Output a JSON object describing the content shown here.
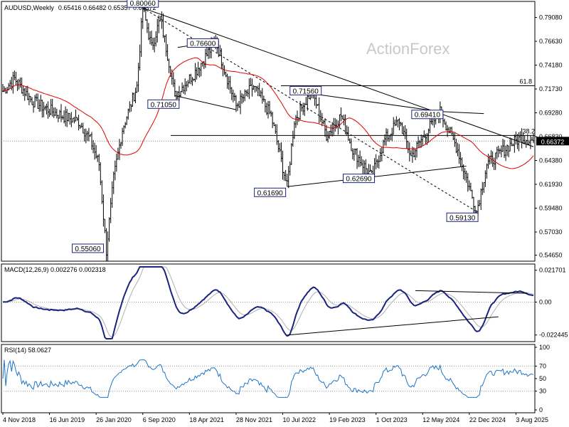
{
  "header": {
    "symbol_line": "AUDUSD,Weekly",
    "ohlc": "0.65416 0.66482 0.65357 0.66372"
  },
  "watermark": "ActionForex",
  "colors": {
    "price": "#000000",
    "sma": "#e00000",
    "macd": "#1a237e",
    "signal": "#b0b0b0",
    "rsi": "#1e73c8",
    "current_box": "#000000"
  },
  "price_axis": {
    "labels": [
      "0.79080",
      "0.76630",
      "0.74180",
      "0.71730",
      "0.69280",
      "0.66830",
      "0.64380",
      "0.61930",
      "0.59480",
      "0.57030",
      "0.54650"
    ],
    "current_price": "0.66372",
    "ylim": [
      0.5403,
      0.8073
    ]
  },
  "fib_labels": {
    "fib618": "61.8",
    "fib382": "38.2"
  },
  "fib_levels": [
    0.7206,
    0.6695
  ],
  "price_labels": [
    {
      "text": "0.80060",
      "price": 0.8006,
      "week": 96
    },
    {
      "text": "0.76600",
      "price": 0.766,
      "week": 146
    },
    {
      "text": "0.71050",
      "price": 0.7105,
      "week": 118
    },
    {
      "text": "0.71560",
      "price": 0.7156,
      "week": 197
    },
    {
      "text": "0.69410",
      "price": 0.6941,
      "week": 300
    },
    {
      "text": "0.61690",
      "price": 0.6169,
      "week": 195
    },
    {
      "text": "0.62690",
      "price": 0.6269,
      "week": 253
    },
    {
      "text": "0.59130",
      "price": 0.5913,
      "week": 325
    },
    {
      "text": "0.55060",
      "price": 0.5506,
      "week": 71
    }
  ],
  "date_axis": [
    "4 Nov 2018",
    "16 Jun 2019",
    "26 Jan 2020",
    "6 Sep 2020",
    "18 Apr 2021",
    "28 Nov 2021",
    "10 Jul 2022",
    "19 Feb 2023",
    "1 Oct 2023",
    "12 May 2024",
    "22 Dec 2024",
    "3 Aug 2025"
  ],
  "macd": {
    "label": "MACD(12,26,9) 0.002276 0.002318",
    "axis": [
      "0.021701",
      "0.00",
      "-0.022445"
    ],
    "ylim": [
      -0.025,
      0.024
    ]
  },
  "rsi": {
    "label": "RSI(14) 58.0627",
    "axis": [
      "100",
      "70",
      "50",
      "30",
      "0"
    ]
  },
  "chart_data": {
    "type": "line",
    "title": "AUDUSD,Weekly",
    "x": [
      "4 Nov 2018",
      "16 Jun 2019",
      "26 Jan 2020",
      "6 Sep 2020",
      "18 Apr 2021",
      "28 Nov 2021",
      "10 Jul 2022",
      "19 Feb 2023",
      "1 Oct 2023",
      "12 May 2024",
      "22 Dec 2024",
      "3 Aug 2025"
    ],
    "series": [
      {
        "name": "",
        "values": [
          0.72,
          0.7,
          0.68,
          0.74,
          0.77,
          0.715,
          0.69,
          0.685,
          0.64,
          0.66,
          0.625,
          0.65
        ]
      }
    ],
    "ylim": [
      0.5403,
      0.8073
    ],
    "extra_points": [
      {
        "x": "early Apr 2020",
        "y": 0.5506
      },
      {
        "x": "late Feb 2021",
        "y": 0.8006
      },
      {
        "x": "Jan 2026",
        "y": 0.6637
      }
    ]
  }
}
